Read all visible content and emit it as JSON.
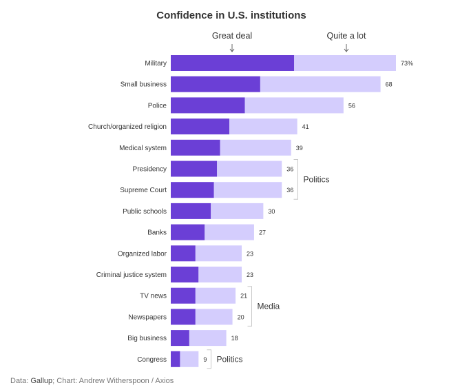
{
  "chart_data": {
    "type": "bar",
    "orientation": "horizontal",
    "stacked": true,
    "title": "Confidence in U.S. institutions",
    "categories": [
      "Military",
      "Small business",
      "Police",
      "Church/organized religion",
      "Medical system",
      "Presidency",
      "Supreme Court",
      "Public schools",
      "Banks",
      "Organized labor",
      "Criminal justice system",
      "TV news",
      "Newspapers",
      "Big business",
      "Congress"
    ],
    "series": [
      {
        "name": "Great deal",
        "color": "#6b3fd6",
        "values": [
          40,
          29,
          24,
          19,
          16,
          15,
          14,
          13,
          11,
          8,
          9,
          8,
          8,
          6,
          3
        ]
      },
      {
        "name": "Quite a lot",
        "color": "#d4cdfd",
        "values": [
          33,
          39,
          32,
          22,
          23,
          21,
          22,
          17,
          16,
          15,
          14,
          13,
          12,
          12,
          6
        ]
      }
    ],
    "totals": [
      73,
      68,
      56,
      41,
      39,
      36,
      36,
      30,
      27,
      23,
      23,
      21,
      20,
      18,
      9
    ],
    "total_labels": [
      "73%",
      "68",
      "56",
      "41",
      "39",
      "36",
      "36",
      "30",
      "27",
      "23",
      "23",
      "21",
      "20",
      "18",
      "9"
    ],
    "xlim": [
      0,
      73
    ],
    "groups": [
      {
        "label": "Politics",
        "categories": [
          "Presidency",
          "Supreme Court"
        ]
      },
      {
        "label": "Media",
        "categories": [
          "TV news",
          "Newspapers"
        ]
      },
      {
        "label": "Politics",
        "categories": [
          "Congress"
        ]
      }
    ],
    "xlabel": "",
    "ylabel": ""
  },
  "footer": {
    "prefix": "Data: ",
    "source": "Gallup",
    "credit": "; Chart: Andrew Witherspoon / Axios"
  }
}
